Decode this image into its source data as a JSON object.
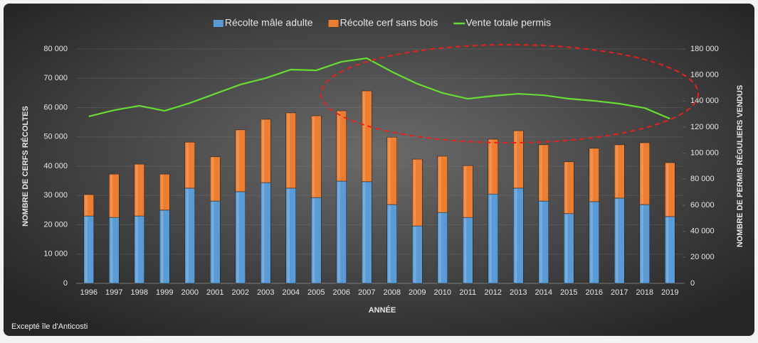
{
  "chart_data": {
    "type": "bar",
    "stacked": true,
    "categories": [
      "1996",
      "1997",
      "1998",
      "1999",
      "2000",
      "2001",
      "2002",
      "2003",
      "2004",
      "2005",
      "2006",
      "2007",
      "2008",
      "2009",
      "2010",
      "2011",
      "2012",
      "2013",
      "2014",
      "2015",
      "2016",
      "2017",
      "2018",
      "2019"
    ],
    "series": [
      {
        "name": "Récolte mâle adulte",
        "color": "#5b9bd5",
        "values": [
          23000,
          22500,
          23000,
          25000,
          32500,
          28100,
          31300,
          34400,
          32500,
          29300,
          34900,
          34700,
          26900,
          19600,
          24200,
          22500,
          30500,
          32500,
          28100,
          23800,
          27900,
          29100,
          26900,
          22800
        ]
      },
      {
        "name": "Récolte cerf sans bois",
        "color": "#ed7d31",
        "values": [
          7300,
          14800,
          17700,
          12300,
          15700,
          15100,
          21100,
          21600,
          25700,
          27900,
          24000,
          31000,
          23000,
          22800,
          19200,
          17700,
          18700,
          19600,
          19200,
          17700,
          18200,
          18200,
          21100,
          18400
        ]
      },
      {
        "name": "Vente totale permis",
        "color": "#66dd33",
        "type": "line",
        "axis": "y2",
        "values": [
          128200,
          133000,
          136400,
          132500,
          138500,
          145600,
          152700,
          157600,
          164200,
          163600,
          170200,
          172900,
          162500,
          153300,
          146200,
          141800,
          144000,
          145600,
          144500,
          141800,
          140200,
          138000,
          134700,
          126500
        ]
      }
    ],
    "ylim": [
      0,
      80000
    ],
    "yticks": [
      0,
      {
        "value": 10000,
        "label": "10 000"
      },
      {
        "value": 20000,
        "label": "20 000"
      },
      {
        "value": 30000,
        "label": "30 000"
      },
      {
        "value": 40000,
        "label": "40 000"
      },
      {
        "value": 50000,
        "label": "50 000"
      },
      {
        "value": 60000,
        "label": "60 000"
      },
      {
        "value": 70000,
        "label": "70 000"
      },
      {
        "value": 80000,
        "label": "80 000"
      }
    ],
    "y2lim": [
      0,
      180000
    ],
    "y2ticks": [
      0,
      {
        "value": 20000,
        "label": "20 000"
      },
      {
        "value": 40000,
        "label": "40 000"
      },
      {
        "value": 60000,
        "label": "60 000"
      },
      {
        "value": 80000,
        "label": "80 000"
      },
      {
        "value": 100000,
        "label": "100 000"
      },
      {
        "value": 120000,
        "label": "120 000"
      },
      {
        "value": 140000,
        "label": "140 000"
      },
      {
        "value": 160000,
        "label": "160 000"
      },
      {
        "value": 180000,
        "label": "180 000"
      }
    ],
    "xlabel": "ANNÉE",
    "ylabel": "NOMBRE DE CERFS RÉCOLTES",
    "y2label": "NOMBRE DE PERMIS  RÉGULIERS VENDUS",
    "note": "Excepté île d'Anticosti",
    "legend": "top",
    "grid": true
  }
}
